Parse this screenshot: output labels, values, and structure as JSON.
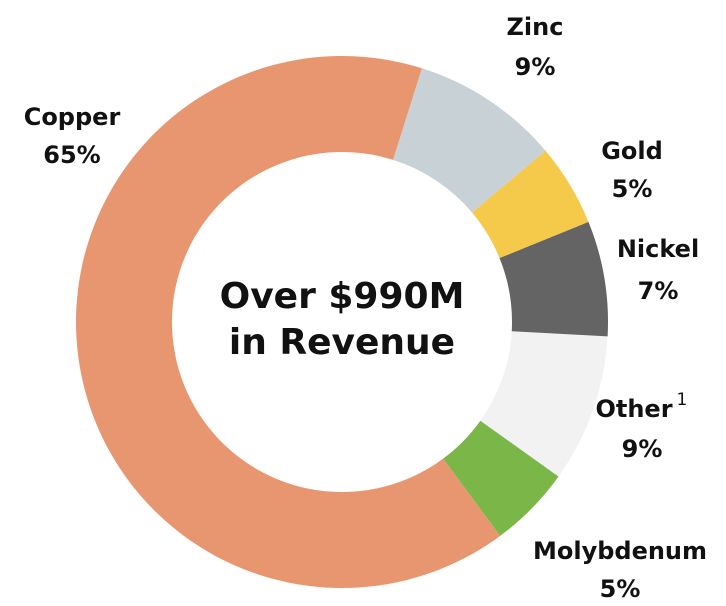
{
  "chart_data": {
    "type": "donut",
    "center_text": [
      "Over $990M",
      "in Revenue"
    ],
    "categories": [
      "Zinc",
      "Gold",
      "Nickel",
      "Other",
      "Molybdenum",
      "Copper"
    ],
    "category_notes": [
      null,
      null,
      null,
      "1",
      null,
      null
    ],
    "values": [
      9,
      5,
      7,
      9,
      5,
      65
    ],
    "value_labels": [
      "9%",
      "5%",
      "7%",
      "9%",
      "5%",
      "65%"
    ],
    "colors": [
      "#c8d2d6",
      "#f5c94a",
      "#636463",
      "#f2f2f2",
      "#7ab648",
      "#e89670"
    ]
  }
}
